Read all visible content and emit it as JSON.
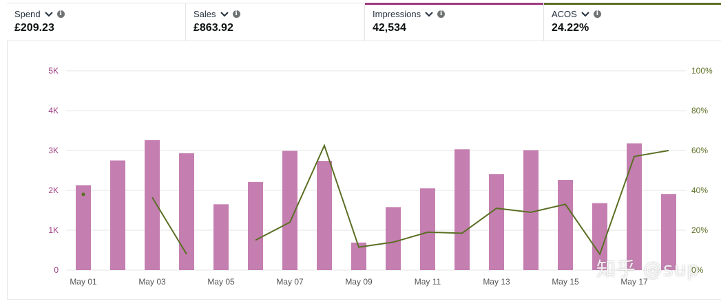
{
  "metrics": [
    {
      "label": "Spend",
      "value": "£209.23",
      "accent": ""
    },
    {
      "label": "Sales",
      "value": "£863.92",
      "accent": ""
    },
    {
      "label": "Impressions",
      "value": "42,534",
      "accent": "#9e3b80"
    },
    {
      "label": "ACOS",
      "value": "24.22%",
      "accent": "#5b6f24"
    }
  ],
  "colors": {
    "bar": "#c47fb0",
    "line": "#5b6f24",
    "left_axis": "#9e3b80",
    "right_axis": "#5b6f24",
    "grid": "#e6e6e6",
    "x_label": "#555555"
  },
  "watermark": "知乎 @sup",
  "chart_data": {
    "type": "bar+line",
    "categories": [
      "May 01",
      "May 02",
      "May 03",
      "May 04",
      "May 05",
      "May 06",
      "May 07",
      "May 08",
      "May 09",
      "May 10",
      "May 11",
      "May 12",
      "May 13",
      "May 14",
      "May 15",
      "May 16",
      "May 17",
      "May 18"
    ],
    "x_tick_labels": [
      "May 01",
      "May 03",
      "May 05",
      "May 07",
      "May 09",
      "May 11",
      "May 13",
      "May 15",
      "May 17"
    ],
    "left_axis": {
      "ticks": [
        "0",
        "1K",
        "2K",
        "3K",
        "4K",
        "5K"
      ],
      "ylim": [
        0,
        5000
      ]
    },
    "right_axis": {
      "ticks": [
        "0%",
        "20%",
        "40%",
        "60%",
        "80%",
        "100%"
      ],
      "ylim": [
        0,
        100
      ]
    },
    "series": [
      {
        "name": "Impressions",
        "type": "bar",
        "axis": "left",
        "values": [
          2130,
          2750,
          3260,
          2930,
          1650,
          2210,
          2990,
          2740,
          690,
          1580,
          2050,
          3030,
          2410,
          3010,
          2260,
          1680,
          3180,
          1910
        ]
      },
      {
        "name": "ACOS",
        "type": "line",
        "axis": "right",
        "values": [
          38,
          null,
          36.5,
          8,
          null,
          15,
          24,
          62.5,
          11.5,
          14,
          19,
          18.5,
          31,
          29,
          33,
          8,
          57,
          60
        ]
      }
    ]
  }
}
